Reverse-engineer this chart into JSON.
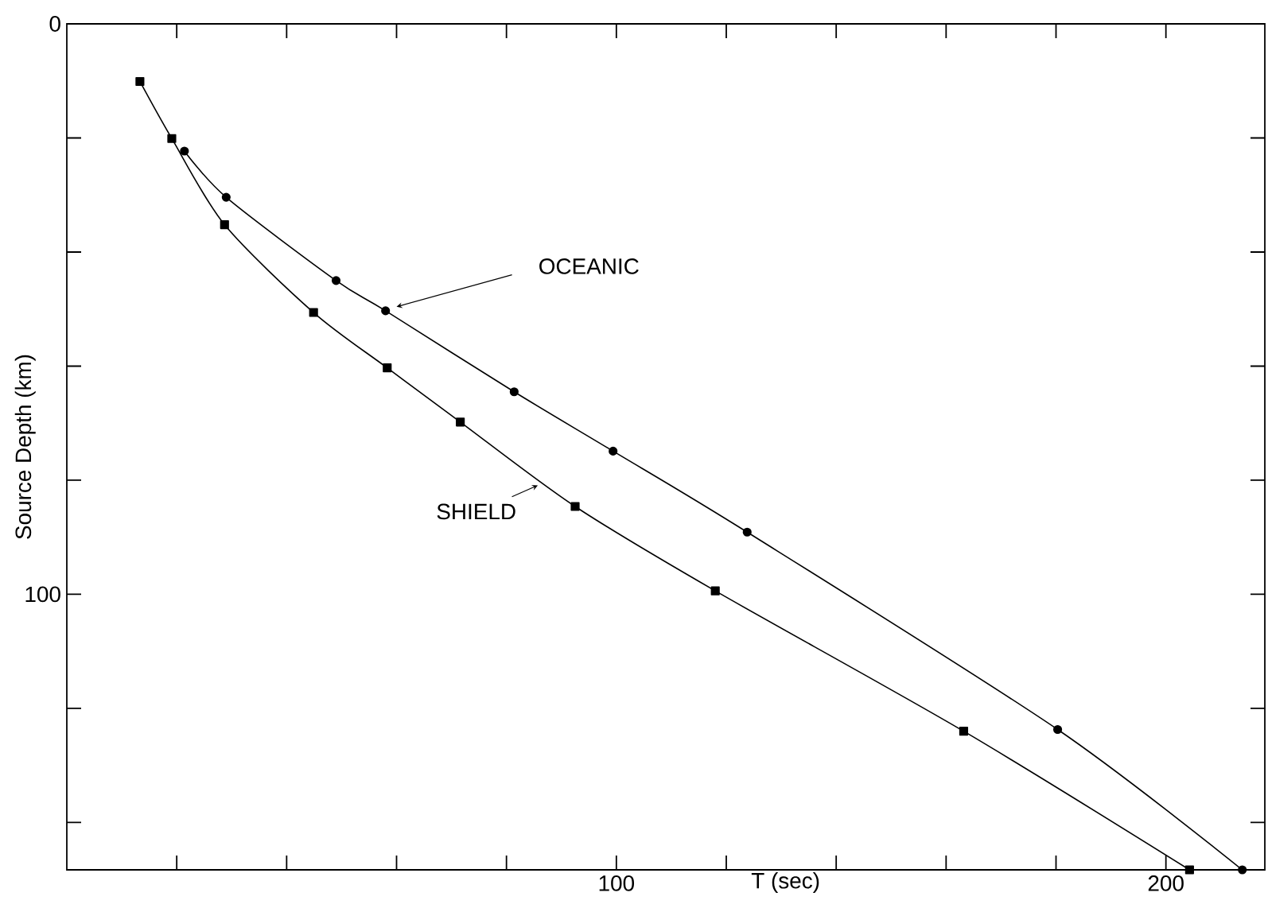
{
  "chart_data": {
    "type": "line",
    "xlabel": "T (sec)",
    "ylabel": "Source Depth (km)",
    "xlim": [
      0,
      218
    ],
    "ylim": [
      148.3,
      0
    ],
    "xticks": [
      {
        "value": 20,
        "label": null
      },
      {
        "value": 40,
        "label": null
      },
      {
        "value": 60,
        "label": null
      },
      {
        "value": 80,
        "label": null
      },
      100,
      {
        "value": 120,
        "label": null
      },
      {
        "value": 140,
        "label": null
      },
      {
        "value": 160,
        "label": null
      },
      {
        "value": 180,
        "label": null
      },
      200
    ],
    "yticks": [
      0,
      {
        "value": 20,
        "label": null
      },
      {
        "value": 40,
        "label": null
      },
      {
        "value": 60,
        "label": null
      },
      {
        "value": 80,
        "label": null
      },
      100,
      {
        "value": 120,
        "label": null
      },
      {
        "value": 140,
        "label": null
      }
    ],
    "grid": false,
    "series": [
      {
        "name": "OCEANIC",
        "color": "#000000",
        "marker": "circle",
        "x": [
          21.4,
          29,
          49,
          58,
          81.4,
          99.4,
          123.8,
          180.3,
          213.9
        ],
        "values": [
          22.3,
          30.4,
          45,
          50.3,
          64.5,
          74.9,
          89.1,
          123.7,
          148.3
        ]
      },
      {
        "name": "SHIELD",
        "color": "#000000",
        "marker": "square",
        "x": [
          13.3,
          19.1,
          28.7,
          44.9,
          58.3,
          71.6,
          92.5,
          118,
          163.2,
          204.3
        ],
        "values": [
          10.1,
          20.1,
          35.2,
          50.6,
          60.3,
          69.8,
          84.6,
          99.4,
          124,
          148.3
        ]
      }
    ]
  }
}
